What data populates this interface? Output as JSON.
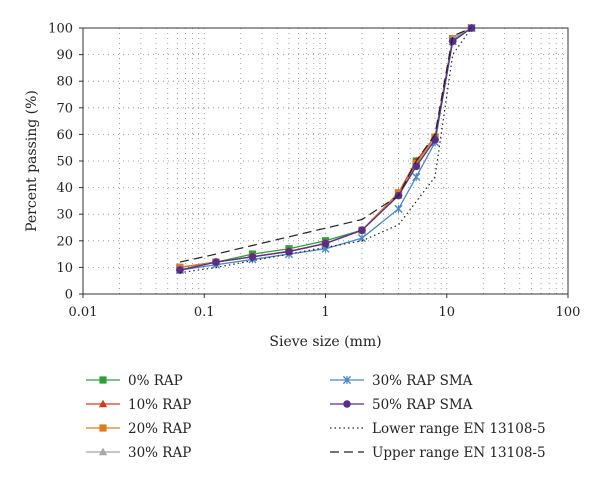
{
  "chart_data": {
    "type": "line",
    "title": "",
    "xlabel": "Sieve size (mm)",
    "ylabel": "Percent passing (%)",
    "xscale": "log",
    "xlim": [
      0.01,
      100
    ],
    "ylim": [
      0,
      100
    ],
    "x_ticks": [
      "0.01",
      "0.1",
      "1",
      "10",
      "100"
    ],
    "y_ticks": [
      "0",
      "10",
      "20",
      "30",
      "40",
      "50",
      "60",
      "70",
      "80",
      "90",
      "100"
    ],
    "grid": "dotted",
    "legend_position": "bottom",
    "series": [
      {
        "name": "0% RAP",
        "color": "#2e9e3a",
        "marker": "square",
        "line": "solid",
        "x": [
          0.063,
          0.125,
          0.25,
          0.5,
          1,
          2,
          4,
          5.6,
          8,
          11.2,
          16
        ],
        "y": [
          10,
          12,
          15,
          17,
          20,
          24,
          38,
          50,
          59,
          96,
          100
        ]
      },
      {
        "name": "10% RAP",
        "color": "#d23a20",
        "marker": "triangle",
        "line": "solid",
        "x": [
          0.063,
          0.125,
          0.25,
          0.5,
          1,
          2,
          4,
          5.6,
          8,
          11.2,
          16
        ],
        "y": [
          10,
          12,
          14,
          16,
          19,
          24,
          38,
          50,
          59,
          96,
          100
        ]
      },
      {
        "name": "20% RAP",
        "color": "#e07a1e",
        "marker": "square",
        "line": "solid",
        "x": [
          0.063,
          0.125,
          0.25,
          0.5,
          1,
          2,
          4,
          5.6,
          8,
          11.2,
          16
        ],
        "y": [
          10,
          12,
          14,
          16,
          19,
          24,
          38,
          49,
          59,
          96,
          100
        ]
      },
      {
        "name": "30% RAP",
        "color": "#a8a8a8",
        "marker": "triangle",
        "line": "solid",
        "x": [
          0.063,
          0.125,
          0.25,
          0.5,
          1,
          2,
          4,
          5.6,
          8,
          11.2,
          16
        ],
        "y": [
          9,
          12,
          14,
          16,
          19,
          24,
          37,
          48,
          58,
          96,
          100
        ]
      },
      {
        "name": "30% RAP SMA",
        "color": "#4a86c6",
        "marker": "x",
        "line": "solid",
        "x": [
          0.063,
          0.125,
          0.25,
          0.5,
          1,
          2,
          4,
          5.6,
          8,
          11.2,
          16
        ],
        "y": [
          9,
          11,
          13,
          15,
          17,
          21,
          32,
          44,
          57,
          95,
          100
        ]
      },
      {
        "name": "50% RAP SMA",
        "color": "#5a2d8a",
        "marker": "circle",
        "line": "solid",
        "x": [
          0.063,
          0.125,
          0.25,
          0.5,
          1,
          2,
          4,
          5.6,
          8,
          11.2,
          16
        ],
        "y": [
          9,
          12,
          14,
          16,
          19,
          24,
          37,
          48,
          58,
          95,
          100
        ]
      },
      {
        "name": "Lower range EN 13108-5",
        "color": "#222222",
        "marker": "none",
        "line": "dotted",
        "x": [
          0.063,
          0.125,
          2,
          4,
          8,
          11.2,
          16
        ],
        "y": [
          8,
          10,
          20,
          26,
          44,
          90,
          100
        ]
      },
      {
        "name": "Upper range EN 13108-5",
        "color": "#222222",
        "marker": "none",
        "line": "dashed",
        "x": [
          0.063,
          0.125,
          2,
          4,
          5.6,
          8,
          11.2,
          16
        ],
        "y": [
          12,
          15,
          28,
          37,
          50,
          60,
          97,
          100
        ]
      }
    ]
  }
}
